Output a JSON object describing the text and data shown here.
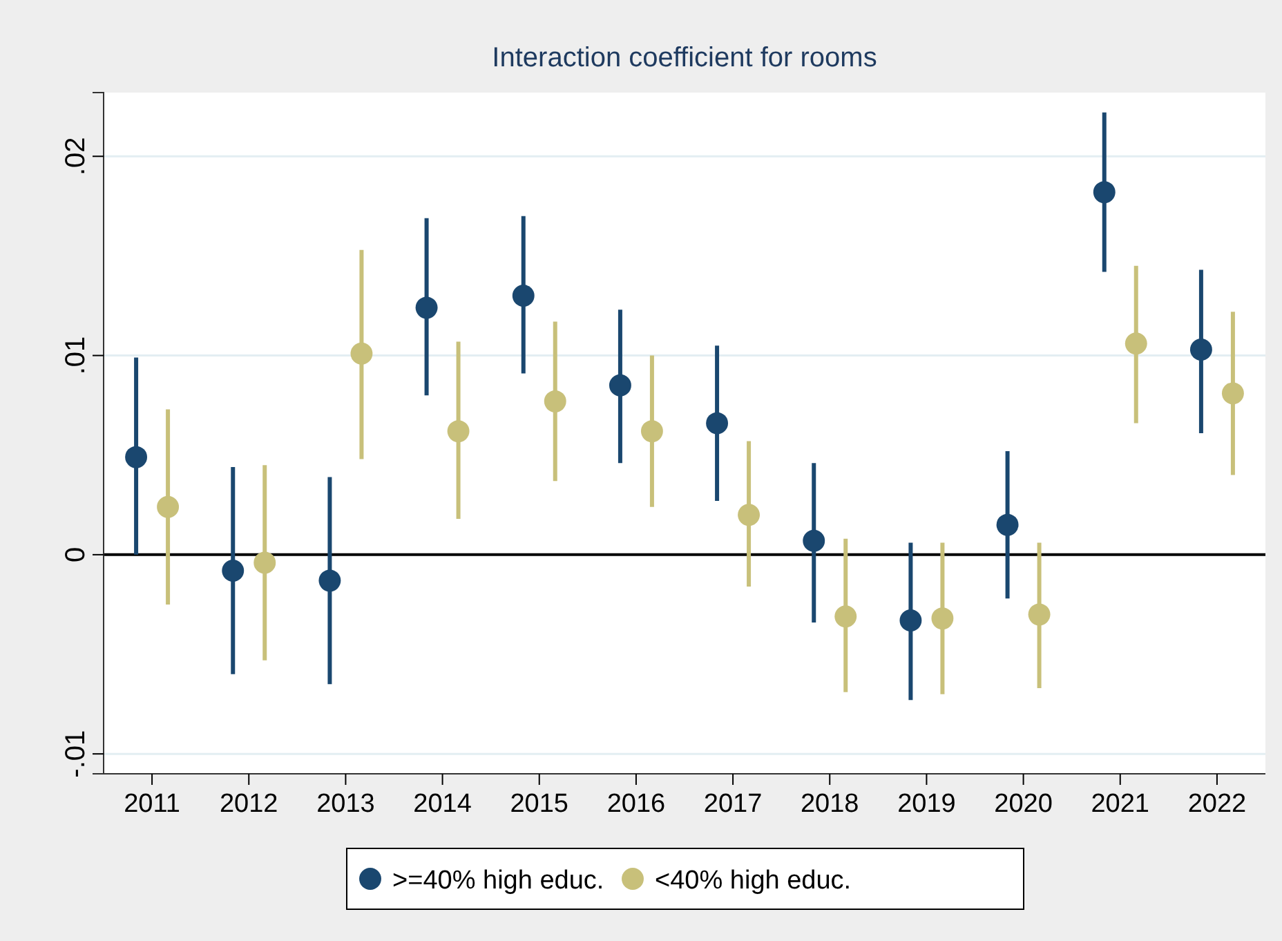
{
  "chart_data": {
    "type": "scatter",
    "title": "Interaction coefficient for rooms",
    "categories": [
      "2011",
      "2012",
      "2013",
      "2014",
      "2015",
      "2016",
      "2017",
      "2018",
      "2019",
      "2020",
      "2021",
      "2022"
    ],
    "series": [
      {
        "name": ">=40% high educ.",
        "color": "#1a476f",
        "values": [
          0.0049,
          -0.0008,
          -0.0013,
          0.0124,
          0.013,
          0.0085,
          0.0066,
          0.0007,
          -0.0033,
          0.0015,
          0.0182,
          0.0103
        ],
        "errors": [
          [
            0,
            0.0099
          ],
          [
            -0.006,
            0.0044
          ],
          [
            -0.0065,
            0.0039
          ],
          [
            0.008,
            0.0169
          ],
          [
            0.0091,
            0.017
          ],
          [
            0.0046,
            0.0123
          ],
          [
            0.0027,
            0.0105
          ],
          [
            -0.0034,
            0.0046
          ],
          [
            -0.0073,
            0.0006
          ],
          [
            -0.0022,
            0.0052
          ],
          [
            0.0142,
            0.0222
          ],
          [
            0.0061,
            0.0143
          ]
        ]
      },
      {
        "name": "<40% high educ.",
        "color": "#c8c07a",
        "values": [
          0.0024,
          -0.0004,
          0.0101,
          0.0062,
          0.0077,
          0.0062,
          0.002,
          -0.0031,
          -0.0032,
          -0.003,
          0.0106,
          0.0081
        ],
        "errors": [
          [
            -0.0025,
            0.0073
          ],
          [
            -0.0053,
            0.0045
          ],
          [
            0.0048,
            0.0153
          ],
          [
            0.0018,
            0.0107
          ],
          [
            0.0037,
            0.0117
          ],
          [
            0.0024,
            0.01
          ],
          [
            -0.0016,
            0.0057
          ],
          [
            -0.0069,
            0.0008
          ],
          [
            -0.007,
            0.0006
          ],
          [
            -0.0067,
            0.0006
          ],
          [
            0.0066,
            0.0145
          ],
          [
            0.004,
            0.0122
          ]
        ]
      }
    ],
    "ylim": [
      -0.011,
      0.0232
    ],
    "yticks": [
      {
        "value": -0.01,
        "label": "-.01"
      },
      {
        "value": 0,
        "label": "0"
      },
      {
        "value": 0.01,
        "label": ".01"
      },
      {
        "value": 0.02,
        "label": ".02"
      }
    ],
    "grid": "y",
    "legend": "bottom",
    "marker": "circle",
    "ref_lines": [
      {
        "axis": "y",
        "value": 0,
        "label": null,
        "color": "#000000"
      }
    ]
  }
}
